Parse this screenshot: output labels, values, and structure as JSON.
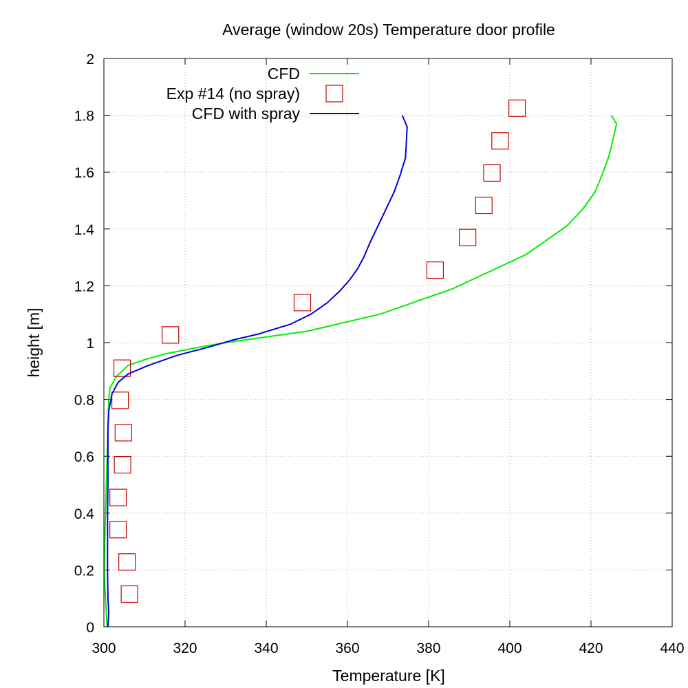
{
  "chart_data": {
    "type": "line",
    "title": "Average (window 20s) Temperature door profile",
    "xlabel": "Temperature [K]",
    "ylabel": "height [m]",
    "xlim": [
      300,
      440
    ],
    "ylim": [
      0,
      2
    ],
    "xticks": [
      300,
      320,
      340,
      360,
      380,
      400,
      420,
      440
    ],
    "yticks": [
      0,
      0.2,
      0.4,
      0.6,
      0.8,
      1,
      1.2,
      1.4,
      1.6,
      1.8,
      2
    ],
    "ytick_labels": [
      "0",
      "0.2",
      "0.4",
      "0.6",
      "0.8",
      "1",
      "1.2",
      "1.4",
      "1.6",
      "1.8",
      "2"
    ],
    "grid": true,
    "legend_position": "top-center",
    "series": [
      {
        "name": "CFD",
        "kind": "line",
        "color": "#00ee00",
        "points": [
          [
            300.8,
            0.0
          ],
          [
            300.6,
            0.05
          ],
          [
            300.4,
            0.1
          ],
          [
            300.2,
            0.15
          ],
          [
            300.1,
            0.2
          ],
          [
            300.2,
            0.3
          ],
          [
            300.4,
            0.4
          ],
          [
            300.6,
            0.5
          ],
          [
            300.8,
            0.6
          ],
          [
            301.0,
            0.7
          ],
          [
            301.2,
            0.8
          ],
          [
            301.5,
            0.84
          ],
          [
            303.0,
            0.88
          ],
          [
            306.0,
            0.92
          ],
          [
            310.0,
            0.94
          ],
          [
            315.0,
            0.96
          ],
          [
            322.0,
            0.98
          ],
          [
            330.0,
            1.0
          ],
          [
            340.0,
            1.02
          ],
          [
            350.0,
            1.04
          ],
          [
            356.0,
            1.06
          ],
          [
            362.0,
            1.08
          ],
          [
            368.0,
            1.1
          ],
          [
            374.0,
            1.13
          ],
          [
            380.0,
            1.16
          ],
          [
            386.0,
            1.19
          ],
          [
            392.0,
            1.23
          ],
          [
            398.0,
            1.27
          ],
          [
            404.0,
            1.31
          ],
          [
            409.0,
            1.36
          ],
          [
            414.0,
            1.41
          ],
          [
            418.0,
            1.47
          ],
          [
            421.0,
            1.53
          ],
          [
            423.0,
            1.6
          ],
          [
            424.5,
            1.66
          ],
          [
            425.5,
            1.72
          ],
          [
            426.3,
            1.77
          ],
          [
            425.0,
            1.8
          ]
        ]
      },
      {
        "name": "Exp #14 (no spray)",
        "kind": "markers",
        "marker": "square",
        "color": "#cc0000",
        "points": [
          [
            306.3,
            0.115
          ],
          [
            305.7,
            0.228
          ],
          [
            303.5,
            0.342
          ],
          [
            303.5,
            0.455
          ],
          [
            304.6,
            0.57
          ],
          [
            304.8,
            0.683
          ],
          [
            304.0,
            0.797
          ],
          [
            304.5,
            0.91
          ],
          [
            316.4,
            1.027
          ],
          [
            348.9,
            1.141
          ],
          [
            381.6,
            1.255
          ],
          [
            389.6,
            1.37
          ],
          [
            393.6,
            1.483
          ],
          [
            395.6,
            1.597
          ],
          [
            397.6,
            1.71
          ],
          [
            401.8,
            1.825
          ]
        ]
      },
      {
        "name": "CFD with spray",
        "kind": "line",
        "color": "#0000dd",
        "points": [
          [
            301.0,
            0.0
          ],
          [
            301.2,
            0.05
          ],
          [
            301.0,
            0.1
          ],
          [
            300.9,
            0.2
          ],
          [
            300.9,
            0.3
          ],
          [
            300.9,
            0.4
          ],
          [
            301.0,
            0.5
          ],
          [
            301.0,
            0.6
          ],
          [
            301.0,
            0.7
          ],
          [
            301.2,
            0.76
          ],
          [
            302.0,
            0.82
          ],
          [
            303.5,
            0.86
          ],
          [
            306.0,
            0.89
          ],
          [
            311.0,
            0.92
          ],
          [
            318.0,
            0.955
          ],
          [
            326.0,
            0.985
          ],
          [
            332.0,
            1.01
          ],
          [
            338.0,
            1.03
          ],
          [
            346.0,
            1.065
          ],
          [
            351.0,
            1.1
          ],
          [
            355.0,
            1.14
          ],
          [
            358.0,
            1.18
          ],
          [
            360.5,
            1.22
          ],
          [
            362.5,
            1.26
          ],
          [
            364.0,
            1.3
          ],
          [
            365.5,
            1.35
          ],
          [
            367.5,
            1.41
          ],
          [
            369.5,
            1.47
          ],
          [
            371.5,
            1.53
          ],
          [
            373.0,
            1.59
          ],
          [
            374.3,
            1.65
          ],
          [
            374.5,
            1.7
          ],
          [
            374.7,
            1.76
          ],
          [
            373.5,
            1.8
          ]
        ]
      }
    ]
  }
}
